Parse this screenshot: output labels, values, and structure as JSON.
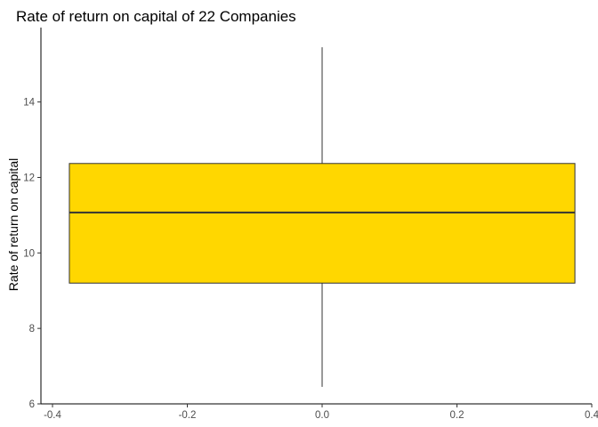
{
  "chart_data": {
    "type": "boxplot",
    "title": "Rate of return on capital of 22 Companies",
    "xlabel": "",
    "ylabel": "Rate of return on capital",
    "xlim": [
      -0.4,
      0.4
    ],
    "ylim": [
      6,
      15.5
    ],
    "x_ticks": [
      "-0.4",
      "-0.2",
      "0.0",
      "0.2",
      "0.4"
    ],
    "x_tick_values": [
      -0.4,
      -0.2,
      0.0,
      0.2,
      0.4
    ],
    "y_ticks": [
      "6",
      "8",
      "10",
      "12",
      "14"
    ],
    "y_tick_values": [
      6,
      8,
      10,
      12,
      14
    ],
    "box": {
      "x_center": 0.0,
      "x_left": -0.375,
      "x_right": 0.375,
      "whisker_low": 6.45,
      "q1": 9.2,
      "median": 11.07,
      "q3": 12.37,
      "whisker_high": 15.45
    },
    "fill_color": "#FFD700",
    "grid": false
  }
}
